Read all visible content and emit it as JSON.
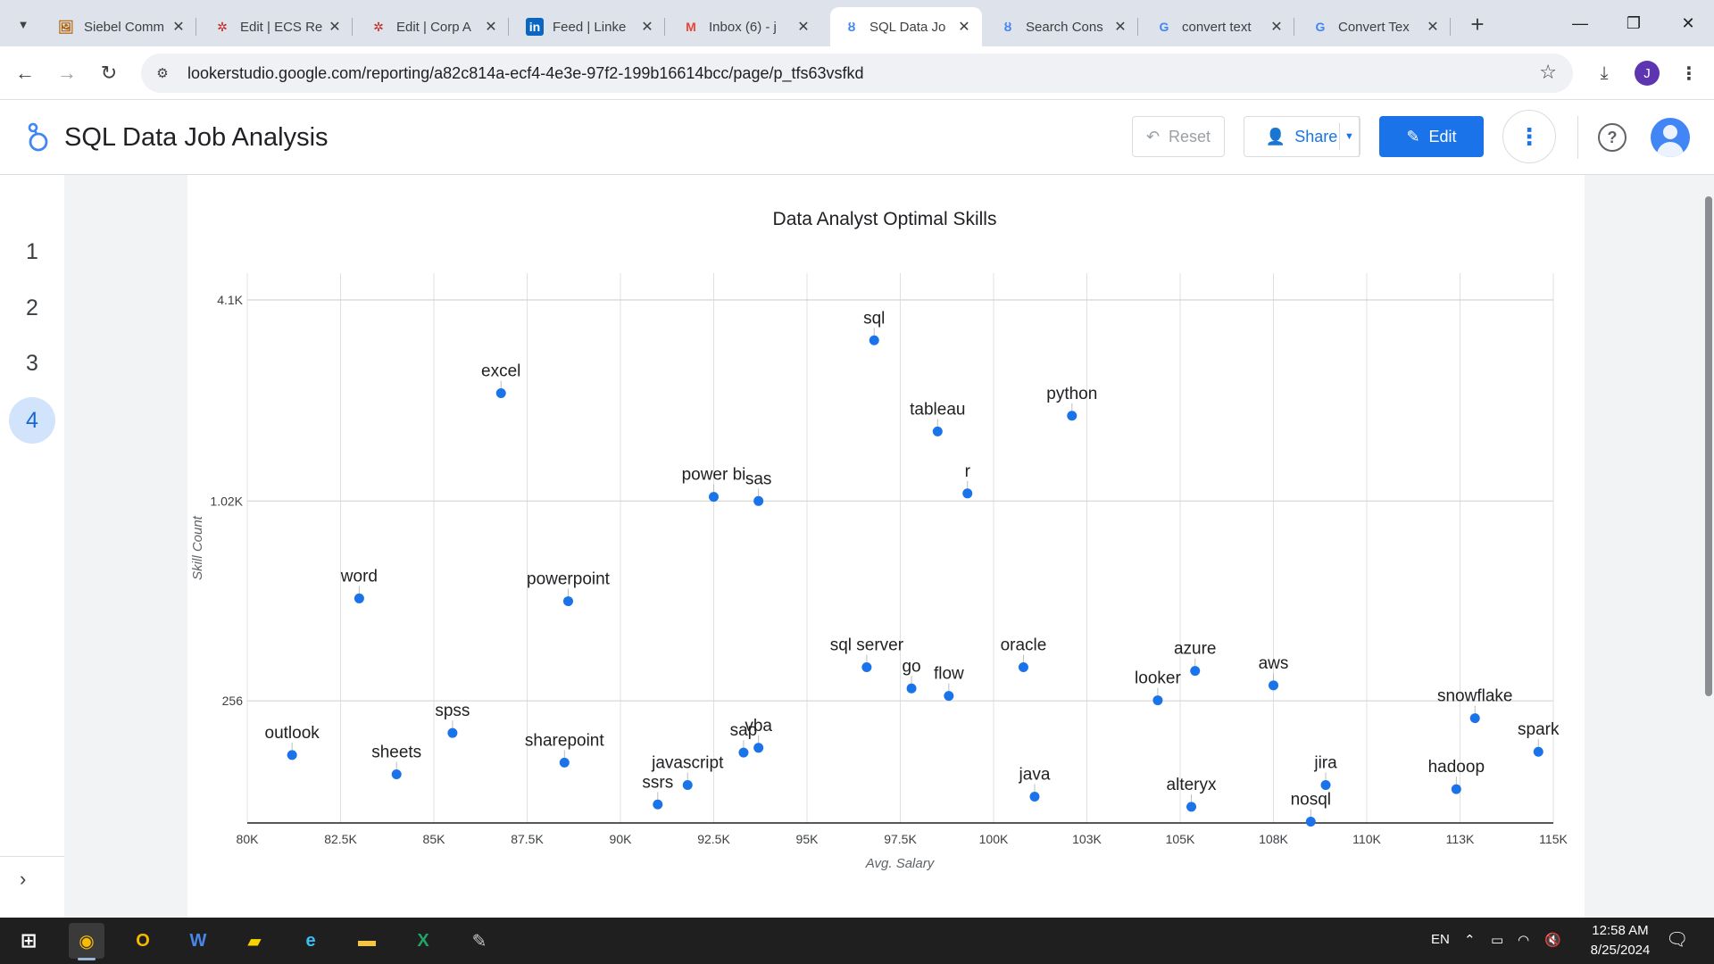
{
  "browser": {
    "tabs": [
      {
        "title": "Siebel Comm",
        "icon": "siebel-icon",
        "active": false
      },
      {
        "title": "Edit | ECS Re",
        "icon": "pinwheel-icon",
        "active": false
      },
      {
        "title": "Edit | Corp A",
        "icon": "pinwheel-icon",
        "active": false
      },
      {
        "title": "Feed | Linke",
        "icon": "linkedin-icon",
        "active": false
      },
      {
        "title": "Inbox (6) - j",
        "icon": "gmail-icon",
        "active": false
      },
      {
        "title": "SQL Data Jo",
        "icon": "looker-icon",
        "active": true
      },
      {
        "title": "Search Cons",
        "icon": "looker-icon",
        "active": false
      },
      {
        "title": "convert text",
        "icon": "google-icon",
        "active": false
      },
      {
        "title": "Convert Tex",
        "icon": "google-icon",
        "active": false
      }
    ],
    "url": "lookerstudio.google.com/reporting/a82c814a-ecf4-4e3e-97f2-199b16614bcc/page/p_tfs63vsfkd",
    "profile_initial": "J"
  },
  "report": {
    "title": "SQL Data Job Analysis",
    "buttons": {
      "reset": "Reset",
      "share": "Share",
      "edit": "Edit"
    },
    "pages": [
      "1",
      "2",
      "3",
      "4"
    ],
    "active_page": "4"
  },
  "colors": {
    "accent": "#1a73e8",
    "point": "#1a73e8"
  },
  "chart_data": {
    "type": "scatter",
    "title": "Data Analyst Optimal Skills",
    "xlabel": "Avg. Salary",
    "ylabel": "Skill Count",
    "x_scale": "linear",
    "y_scale": "log",
    "xlim": [
      80000,
      115000
    ],
    "ylim": [
      110,
      4100
    ],
    "x_ticks": [
      80000,
      82500,
      85000,
      87500,
      90000,
      92500,
      95000,
      97500,
      100000,
      102500,
      105000,
      107500,
      110000,
      112500,
      115000
    ],
    "x_tick_labels": [
      "80K",
      "82.5K",
      "85K",
      "87.5K",
      "90K",
      "92.5K",
      "95K",
      "97.5K",
      "100K",
      "103K",
      "105K",
      "108K",
      "110K",
      "113K",
      "115K"
    ],
    "y_ticks": [
      256,
      1020,
      4100
    ],
    "y_tick_labels": [
      "256",
      "1.02K",
      "4.1K"
    ],
    "grid": true,
    "points": [
      {
        "label": "sql",
        "x": 96800,
        "y": 3100
      },
      {
        "label": "excel",
        "x": 86800,
        "y": 2150
      },
      {
        "label": "python",
        "x": 102100,
        "y": 1840
      },
      {
        "label": "tableau",
        "x": 98500,
        "y": 1650
      },
      {
        "label": "r",
        "x": 99300,
        "y": 1075
      },
      {
        "label": "power bi",
        "x": 92500,
        "y": 1050
      },
      {
        "label": "sas",
        "x": 93700,
        "y": 1020
      },
      {
        "label": "word",
        "x": 83000,
        "y": 520
      },
      {
        "label": "powerpoint",
        "x": 88600,
        "y": 510
      },
      {
        "label": "sql server",
        "x": 96600,
        "y": 323
      },
      {
        "label": "oracle",
        "x": 100800,
        "y": 323
      },
      {
        "label": "azure",
        "x": 105400,
        "y": 315
      },
      {
        "label": "go",
        "x": 97800,
        "y": 279
      },
      {
        "label": "flow",
        "x": 98800,
        "y": 265
      },
      {
        "label": "aws",
        "x": 107500,
        "y": 285
      },
      {
        "label": "looker",
        "x": 104400,
        "y": 257
      },
      {
        "label": "snowflake",
        "x": 112900,
        "y": 227
      },
      {
        "label": "spss",
        "x": 85500,
        "y": 205
      },
      {
        "label": "outlook",
        "x": 81200,
        "y": 176
      },
      {
        "label": "sheets",
        "x": 84000,
        "y": 154
      },
      {
        "label": "sharepoint",
        "x": 88500,
        "y": 167
      },
      {
        "label": "sap",
        "x": 93300,
        "y": 179
      },
      {
        "label": "vba",
        "x": 93700,
        "y": 185
      },
      {
        "label": "spark",
        "x": 114600,
        "y": 180
      },
      {
        "label": "javascript",
        "x": 91800,
        "y": 143
      },
      {
        "label": "ssrs",
        "x": 91000,
        "y": 125
      },
      {
        "label": "java",
        "x": 101100,
        "y": 132
      },
      {
        "label": "alteryx",
        "x": 105300,
        "y": 123
      },
      {
        "label": "jira",
        "x": 108900,
        "y": 143
      },
      {
        "label": "hadoop",
        "x": 112400,
        "y": 139
      },
      {
        "label": "nosql",
        "x": 108500,
        "y": 111
      }
    ]
  },
  "taskbar": {
    "apps": [
      {
        "name": "chrome-icon",
        "active": true
      },
      {
        "name": "outlook-icon",
        "active": false
      },
      {
        "name": "word-icon",
        "active": false
      },
      {
        "name": "sticky-notes-icon",
        "active": false
      },
      {
        "name": "edge-icon",
        "active": false
      },
      {
        "name": "file-explorer-icon",
        "active": false
      },
      {
        "name": "excel-icon",
        "active": false
      },
      {
        "name": "paint-icon",
        "active": false
      }
    ],
    "lang": "EN",
    "time": "12:58 AM",
    "date": "8/25/2024"
  }
}
